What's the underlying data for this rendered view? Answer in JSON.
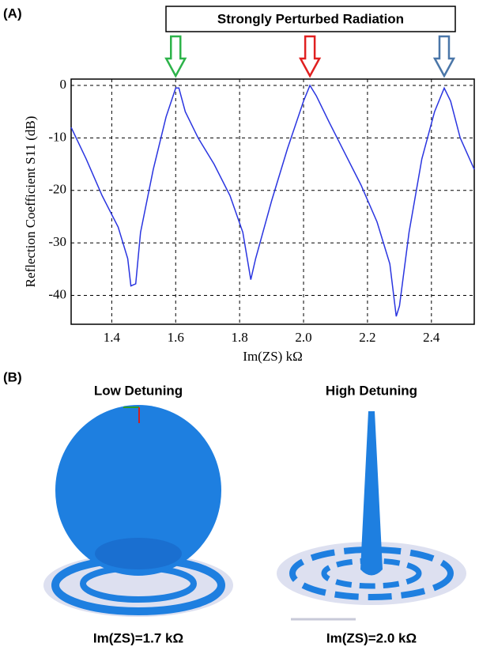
{
  "panel_a": {
    "label": "(A)"
  },
  "panel_b": {
    "label": "(B)",
    "images": [
      {
        "title": "Low Detuning",
        "caption": "Im(ZS)=1.7 kΩ"
      },
      {
        "title": "High Detuning",
        "caption": "Im(ZS)=2.0 kΩ"
      }
    ]
  },
  "chart_data": {
    "type": "line",
    "annotation": "Strongly Perturbed Radiation",
    "arrows": [
      {
        "x": 1.6,
        "color": "#2db34a"
      },
      {
        "x": 2.02,
        "color": "#e02020"
      },
      {
        "x": 2.44,
        "color": "#4a76a8"
      }
    ],
    "xlabel": "Im(ZS)  kΩ",
    "ylabel": "Reflection Coefficient S11 (dB)",
    "color": "#2a35e0",
    "x": [
      1.273,
      1.32,
      1.37,
      1.42,
      1.45,
      1.46,
      1.475,
      1.49,
      1.53,
      1.57,
      1.6,
      1.61,
      1.63,
      1.67,
      1.72,
      1.77,
      1.81,
      1.835,
      1.85,
      1.9,
      1.95,
      2.0,
      2.02,
      2.04,
      2.08,
      2.13,
      2.18,
      2.23,
      2.27,
      2.29,
      2.3,
      2.33,
      2.37,
      2.41,
      2.44,
      2.46,
      2.49,
      2.534
    ],
    "values": [
      -8,
      -14,
      -21,
      -27,
      -33,
      -38.2,
      -37.8,
      -28,
      -16,
      -6,
      -0.5,
      -0.5,
      -5,
      -10,
      -15,
      -21,
      -28,
      -37,
      -33,
      -22,
      -12,
      -3,
      0,
      -2,
      -7,
      -13,
      -19,
      -26,
      -34,
      -44,
      -42,
      -28,
      -14,
      -5,
      -0.5,
      -3,
      -10,
      -16
    ],
    "xlim": [
      1.273,
      2.534
    ],
    "ylim": [
      -45.5,
      1.2
    ],
    "xticks": [
      1.4,
      1.6,
      1.8,
      {
        "value": 2,
        "label": "2.0"
      },
      2.2,
      2.4
    ],
    "yticks": [
      0,
      -10,
      -20,
      -30,
      -40
    ],
    "grid": true
  }
}
